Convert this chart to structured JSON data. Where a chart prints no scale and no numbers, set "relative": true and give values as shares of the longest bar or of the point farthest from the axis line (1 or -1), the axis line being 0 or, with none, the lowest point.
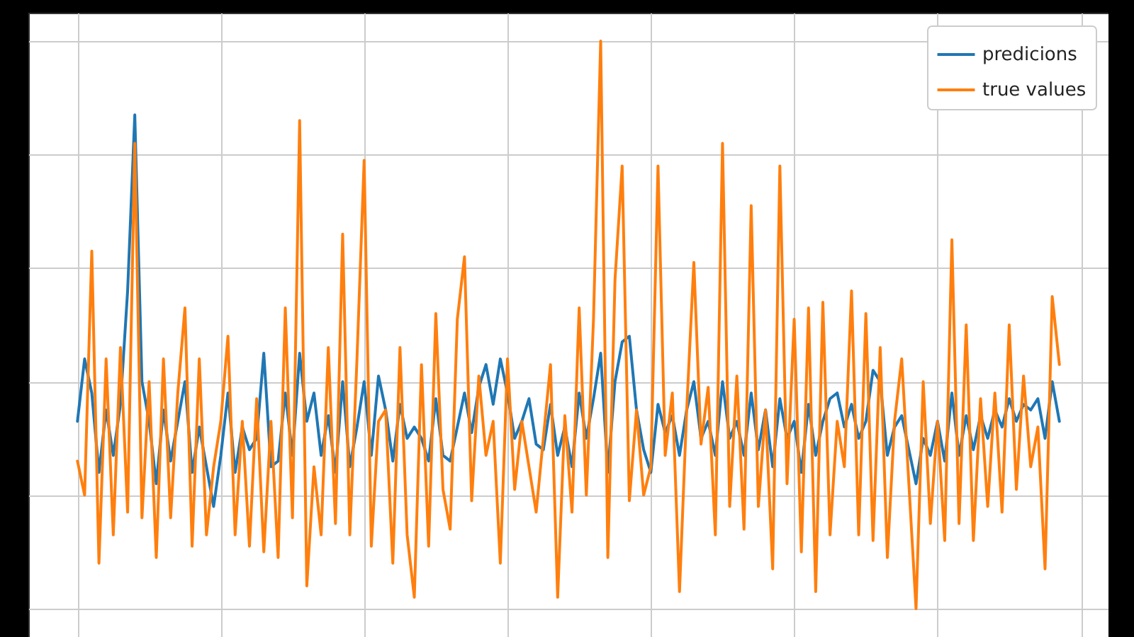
{
  "chart_data": {
    "type": "line",
    "relative": true,
    "grid": true,
    "legend": "top right",
    "categories": [
      null,
      null,
      null,
      null,
      null,
      null,
      null,
      null,
      null,
      null,
      null,
      null,
      null,
      null,
      null,
      null,
      null,
      null,
      null,
      null,
      null,
      null,
      null,
      null,
      null,
      null,
      null,
      null,
      null,
      null,
      null,
      null,
      null,
      null,
      null,
      null,
      null,
      null,
      null,
      null,
      null,
      null,
      null,
      null,
      null,
      null,
      null,
      null,
      null,
      null,
      null,
      null,
      null,
      null,
      null,
      null,
      null,
      null,
      null,
      null,
      null,
      null,
      null,
      null,
      null,
      null,
      null,
      null,
      null,
      null,
      null,
      null,
      null,
      null,
      null,
      null,
      null,
      null,
      null,
      null,
      null,
      null,
      null,
      null,
      null,
      null,
      null,
      null,
      null,
      null,
      null,
      null,
      null,
      null,
      null,
      null,
      null,
      null,
      null,
      null,
      null,
      null,
      null,
      null,
      null,
      null,
      null,
      null,
      null,
      null,
      null,
      null,
      null,
      null,
      null,
      null,
      null,
      null,
      null,
      null,
      null,
      null,
      null,
      null,
      null,
      null,
      null,
      null,
      null,
      null,
      null,
      null,
      null,
      null,
      null,
      null,
      null,
      null
    ],
    "series": [
      {
        "name": "predicions",
        "color": "#1f77b4",
        "values": [
          0.33,
          0.44,
          0.38,
          0.24,
          0.35,
          0.27,
          0.36,
          0.56,
          0.87,
          0.4,
          0.33,
          0.22,
          0.35,
          0.26,
          0.33,
          0.4,
          0.24,
          0.32,
          0.25,
          0.18,
          0.27,
          0.38,
          0.24,
          0.32,
          0.28,
          0.3,
          0.45,
          0.25,
          0.26,
          0.38,
          0.27,
          0.45,
          0.33,
          0.38,
          0.27,
          0.34,
          0.24,
          0.4,
          0.25,
          0.32,
          0.4,
          0.27,
          0.41,
          0.35,
          0.26,
          0.36,
          0.3,
          0.32,
          0.3,
          0.26,
          0.37,
          0.27,
          0.26,
          0.32,
          0.38,
          0.31,
          0.39,
          0.43,
          0.36,
          0.44,
          0.38,
          0.3,
          0.33,
          0.37,
          0.29,
          0.28,
          0.36,
          0.27,
          0.32,
          0.25,
          0.38,
          0.3,
          0.37,
          0.45,
          0.24,
          0.4,
          0.47,
          0.48,
          0.35,
          0.28,
          0.24,
          0.36,
          0.31,
          0.34,
          0.27,
          0.35,
          0.4,
          0.3,
          0.33,
          0.27,
          0.4,
          0.3,
          0.33,
          0.27,
          0.38,
          0.28,
          0.35,
          0.25,
          0.37,
          0.3,
          0.33,
          0.24,
          0.36,
          0.27,
          0.33,
          0.37,
          0.38,
          0.32,
          0.36,
          0.3,
          0.33,
          0.42,
          0.4,
          0.27,
          0.32,
          0.34,
          0.28,
          0.22,
          0.3,
          0.27,
          0.33,
          0.26,
          0.38,
          0.27,
          0.34,
          0.28,
          0.34,
          0.3,
          0.35,
          0.32,
          0.37,
          0.33,
          0.36,
          0.35,
          0.37,
          0.3,
          0.4,
          0.33
        ]
      },
      {
        "name": "true values",
        "color": "#ff7f0e",
        "values": [
          0.26,
          0.2,
          0.63,
          0.08,
          0.44,
          0.13,
          0.46,
          0.17,
          0.82,
          0.16,
          0.4,
          0.09,
          0.44,
          0.16,
          0.38,
          0.53,
          0.11,
          0.44,
          0.13,
          0.25,
          0.33,
          0.48,
          0.13,
          0.33,
          0.11,
          0.37,
          0.1,
          0.33,
          0.09,
          0.53,
          0.16,
          0.86,
          0.04,
          0.25,
          0.13,
          0.46,
          0.15,
          0.66,
          0.13,
          0.44,
          0.79,
          0.11,
          0.33,
          0.35,
          0.08,
          0.46,
          0.13,
          0.02,
          0.43,
          0.11,
          0.52,
          0.21,
          0.14,
          0.51,
          0.62,
          0.19,
          0.41,
          0.27,
          0.33,
          0.08,
          0.44,
          0.21,
          0.33,
          0.25,
          0.17,
          0.3,
          0.43,
          0.02,
          0.34,
          0.17,
          0.53,
          0.2,
          0.51,
          1.0,
          0.09,
          0.58,
          0.78,
          0.19,
          0.35,
          0.2,
          0.25,
          0.78,
          0.27,
          0.38,
          0.03,
          0.35,
          0.61,
          0.29,
          0.39,
          0.13,
          0.82,
          0.18,
          0.41,
          0.14,
          0.71,
          0.18,
          0.35,
          0.07,
          0.78,
          0.22,
          0.51,
          0.1,
          0.53,
          0.03,
          0.54,
          0.13,
          0.33,
          0.25,
          0.56,
          0.13,
          0.52,
          0.12,
          0.46,
          0.09,
          0.33,
          0.44,
          0.22,
          0.0,
          0.4,
          0.15,
          0.33,
          0.12,
          0.65,
          0.15,
          0.5,
          0.12,
          0.37,
          0.18,
          0.38,
          0.17,
          0.5,
          0.21,
          0.41,
          0.25,
          0.32,
          0.07,
          0.55,
          0.43
        ]
      }
    ]
  }
}
